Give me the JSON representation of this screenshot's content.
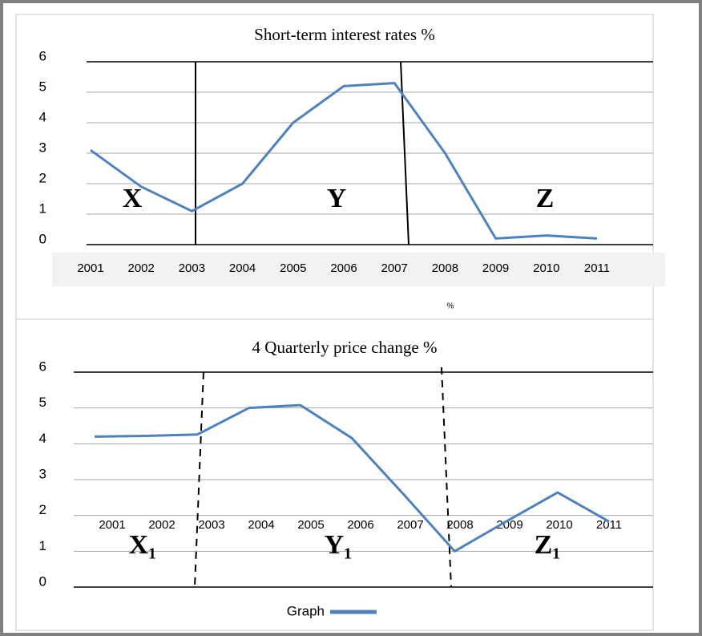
{
  "chart_data": [
    {
      "type": "line",
      "title": "Short-term interest rates %",
      "xlabel": "%",
      "categories": [
        "2001",
        "2002",
        "2003",
        "2004",
        "2005",
        "2006",
        "2007",
        "2008",
        "2009",
        "2010",
        "2011"
      ],
      "series": [
        {
          "color": "#4f81bd",
          "values": [
            3.1,
            1.9,
            1.1,
            2.0,
            4.0,
            5.2,
            5.3,
            3.0,
            0.2,
            0.3,
            0.2
          ]
        }
      ],
      "ylim": [
        0,
        6
      ],
      "yticks": [
        0,
        1,
        2,
        3,
        4,
        5,
        6
      ],
      "grid": true,
      "annotations": [
        "X",
        "Y",
        "Z"
      ]
    },
    {
      "type": "line",
      "title": "4 Quarterly price change %",
      "categories": [
        "2001",
        "2002",
        "2003",
        "2004",
        "2005",
        "2006",
        "2007",
        "2008",
        "2009",
        "2010",
        "2011"
      ],
      "series": [
        {
          "name": "Graph",
          "color": "#4f81bd",
          "values": [
            4.2,
            4.22,
            4.26,
            5.0,
            5.08,
            4.16,
            2.6,
            1.0,
            1.83,
            2.64,
            1.83
          ]
        }
      ],
      "ylim": [
        0,
        6
      ],
      "yticks": [
        0,
        1,
        2,
        3,
        4,
        5,
        6
      ],
      "grid": true,
      "legend": "bottom",
      "annotations": [
        "X₁",
        "Y₁",
        "Z₁"
      ]
    }
  ]
}
